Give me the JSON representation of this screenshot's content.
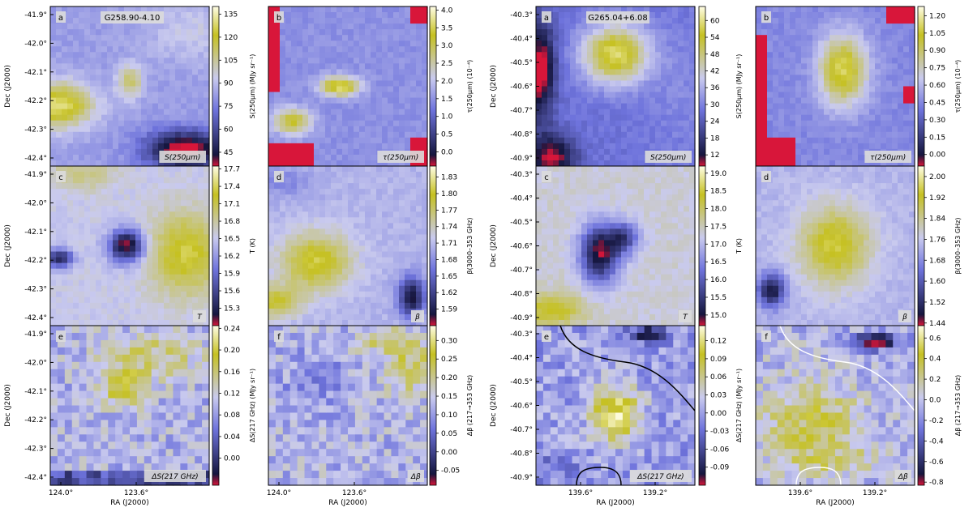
{
  "figure": {
    "ra_label": "RA (J2000)",
    "dec_label": "Dec (J2000)"
  },
  "chart_data": [
    {
      "type": "heatmap",
      "field": "G258.90-4.10",
      "ra_ticks": [
        "124.0°",
        "123.6°"
      ],
      "dec_ticks": [
        "-41.9°",
        "-42.0°",
        "-42.1°",
        "-42.2°",
        "-42.3°",
        "-42.4°"
      ],
      "panels": [
        {
          "letter": "a",
          "quantity": "S(250μm)",
          "cbar_label": "S(250μm) (MJy sr⁻¹)",
          "cbar_ticks": [
            "135",
            "120",
            "105",
            "90",
            "75",
            "60",
            "45"
          ],
          "vmin": 36,
          "vmax": 140,
          "field_label": "G258.90-4.10"
        },
        {
          "letter": "b",
          "quantity": "τ(250μm)",
          "cbar_label": "τ(250μm) (10⁻⁴)",
          "cbar_ticks": [
            "4.0",
            "3.5",
            "3.0",
            "2.5",
            "2.0",
            "1.5",
            "1.0",
            "0.5",
            "0.0"
          ],
          "vmin": -0.4,
          "vmax": 4.1
        },
        {
          "letter": "c",
          "quantity": "T",
          "cbar_label": "T (K)",
          "cbar_ticks": [
            "17.7",
            "17.4",
            "17.1",
            "16.8",
            "16.5",
            "16.2",
            "15.9",
            "15.6",
            "15.3"
          ],
          "vmin": 15.0,
          "vmax": 17.75
        },
        {
          "letter": "d",
          "quantity": "β",
          "cbar_label": "β(3000–353 GHz)",
          "cbar_ticks": [
            "1.83",
            "1.80",
            "1.77",
            "1.74",
            "1.71",
            "1.68",
            "1.65",
            "1.62",
            "1.59"
          ],
          "vmin": 1.56,
          "vmax": 1.85
        },
        {
          "letter": "e",
          "quantity": "ΔS(217 GHz)",
          "cbar_label": "ΔS(217 GHz) (MJy sr⁻¹)",
          "cbar_ticks": [
            "0.24",
            "0.20",
            "0.16",
            "0.12",
            "0.08",
            "0.04",
            "0.00"
          ],
          "vmin": -0.05,
          "vmax": 0.245
        },
        {
          "letter": "f",
          "quantity": "Δβ",
          "cbar_label": "Δβ (217→353 GHz)",
          "cbar_ticks": [
            "0.30",
            "0.25",
            "0.20",
            "0.15",
            "0.10",
            "0.05",
            "0.00",
            "-0.05"
          ],
          "vmin": -0.09,
          "vmax": 0.34
        }
      ]
    },
    {
      "type": "heatmap",
      "field": "G265.04+6.08",
      "ra_ticks": [
        "139.6°",
        "139.2°"
      ],
      "dec_ticks": [
        "-40.3°",
        "-40.4°",
        "-40.5°",
        "-40.6°",
        "-40.7°",
        "-40.8°",
        "-40.9°"
      ],
      "panels": [
        {
          "letter": "a",
          "quantity": "S(250μm)",
          "cbar_label": "S(250μm) (MJy sr⁻¹)",
          "cbar_ticks": [
            "60",
            "54",
            "48",
            "42",
            "36",
            "30",
            "24",
            "18",
            "12"
          ],
          "vmin": 8,
          "vmax": 65,
          "field_label": "G265.04+6.08"
        },
        {
          "letter": "b",
          "quantity": "τ(250μm)",
          "cbar_label": "τ(250μm) (10⁻⁴)",
          "cbar_ticks": [
            "1.20",
            "1.05",
            "0.90",
            "0.75",
            "0.60",
            "0.45",
            "0.30",
            "0.15",
            "0.00"
          ],
          "vmin": -0.1,
          "vmax": 1.28
        },
        {
          "letter": "c",
          "quantity": "T",
          "cbar_label": "T (K)",
          "cbar_ticks": [
            "19.0",
            "18.5",
            "18.0",
            "17.5",
            "17.0",
            "16.5",
            "16.0",
            "15.5",
            "15.0"
          ],
          "vmin": 14.7,
          "vmax": 19.2
        },
        {
          "letter": "d",
          "quantity": "β",
          "cbar_label": "β(3000–353 GHz)",
          "cbar_ticks": [
            "2.00",
            "1.92",
            "1.84",
            "1.76",
            "1.68",
            "1.60",
            "1.52",
            "1.44"
          ],
          "vmin": 1.43,
          "vmax": 2.04
        },
        {
          "letter": "e",
          "quantity": "ΔS(217 GHz)",
          "cbar_label": "ΔS(217 GHz) (MJy sr⁻¹)",
          "cbar_ticks": [
            "0.12",
            "0.09",
            "0.06",
            "0.03",
            "0.00",
            "-0.03",
            "-0.06",
            "-0.09"
          ],
          "vmin": -0.12,
          "vmax": 0.145
        },
        {
          "letter": "f",
          "quantity": "Δβ",
          "cbar_label": "Δβ (217→353 GHz)",
          "cbar_ticks": [
            "0.6",
            "0.4",
            "0.2",
            "0.0",
            "-0.2",
            "-0.4",
            "-0.6",
            "-0.8"
          ],
          "vmin": -0.83,
          "vmax": 0.72
        }
      ]
    }
  ],
  "colors": {
    "low": "#d8163a",
    "dark": "#15163e",
    "mid_blue": "#6e73dc",
    "light": "#c9caee",
    "yellow": "#c6c122",
    "high": "#fffde6",
    "label_box": "#dcdcdc",
    "contour_e": "#000000",
    "contour_f": "#ffffff"
  }
}
